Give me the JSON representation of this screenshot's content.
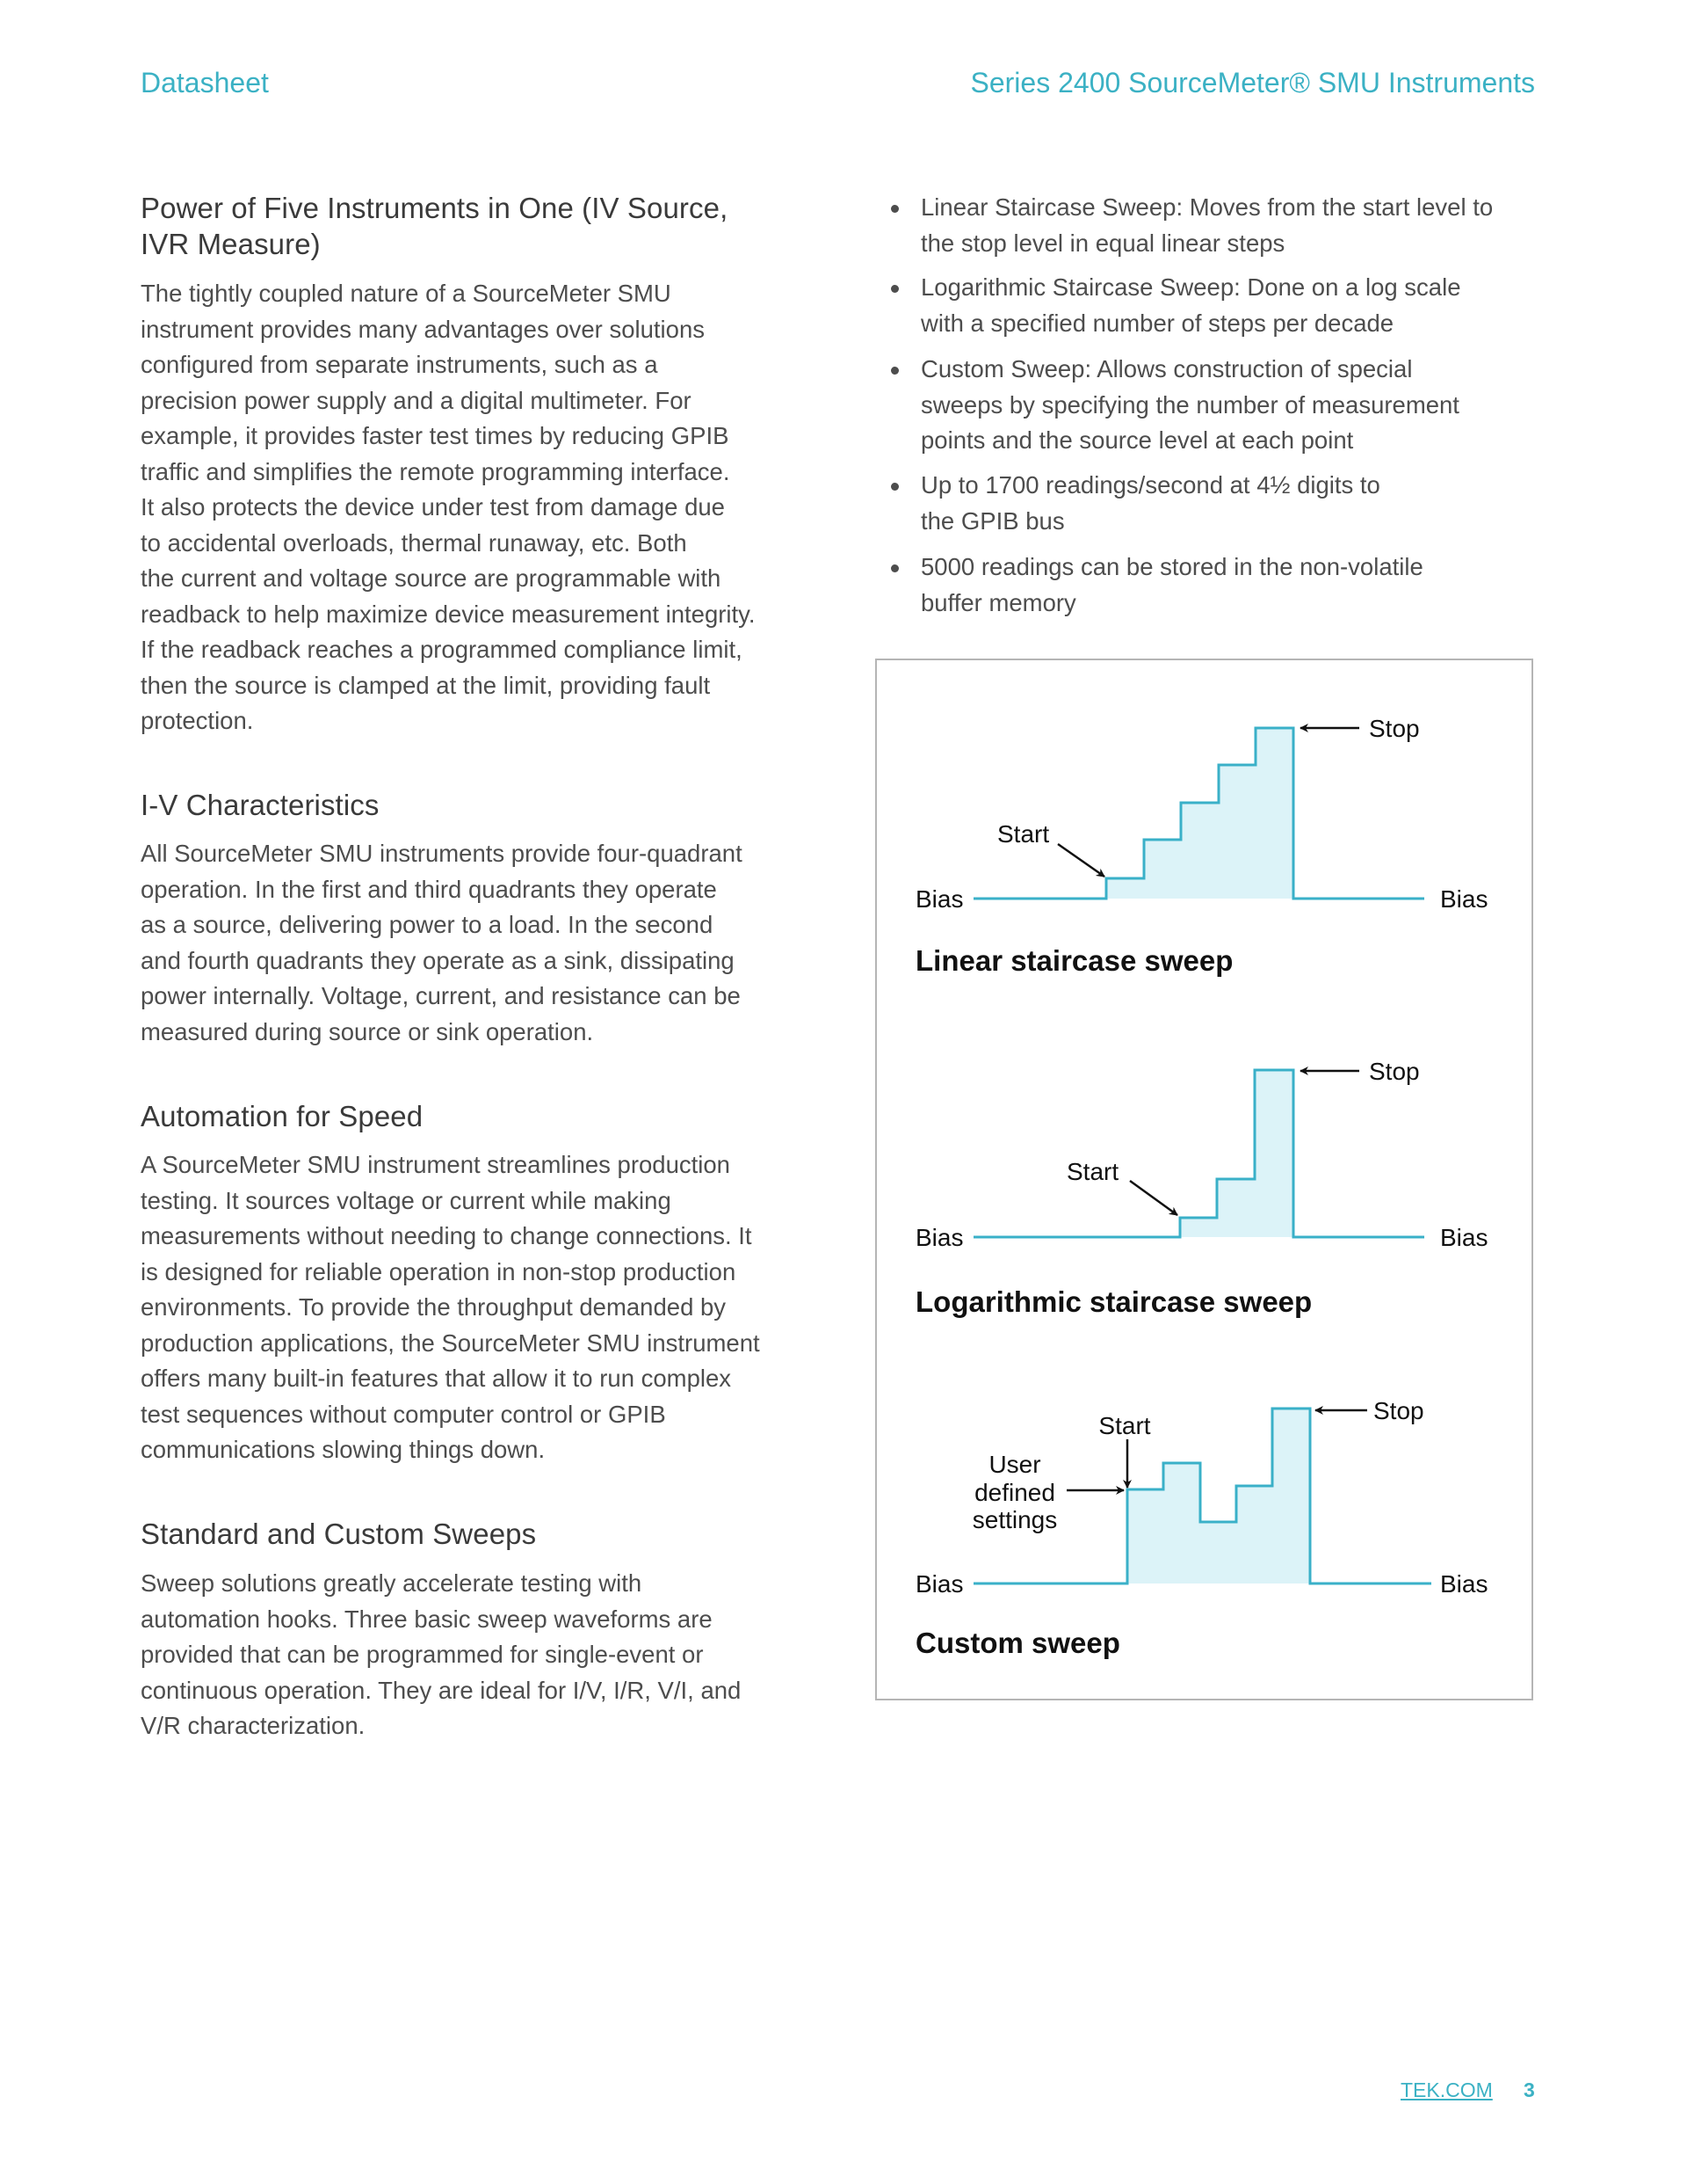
{
  "header": {
    "left": "Datasheet",
    "right": "Series 2400 SourceMeter® SMU Instruments"
  },
  "left_column": [
    {
      "heading": [
        "Power of Five Instruments in One (IV Source,",
        "IVR Measure)"
      ],
      "body": [
        "The tightly coupled nature of a SourceMeter SMU",
        "instrument provides many advantages over solutions",
        "configured from separate instruments, such as a",
        "precision power supply and a digital multimeter. For",
        "example, it provides faster test times by reducing GPIB",
        "traffic and simplifies the remote programming interface.",
        "It also protects the device under test from damage due",
        "to accidental overloads, thermal runaway, etc. Both",
        "the current and voltage source are programmable with",
        "readback to help maximize device measurement integrity.",
        "If the readback reaches a programmed compliance limit,",
        "then the source is clamped at the limit, providing fault",
        "protection."
      ]
    },
    {
      "heading": [
        "I-V Characteristics"
      ],
      "body": [
        "All SourceMeter SMU instruments provide four-quadrant",
        "operation. In the first and third quadrants they operate",
        "as a source, delivering power to a load. In the second",
        "and fourth quadrants they operate as a sink, dissipating",
        "power internally. Voltage, current, and resistance can be",
        "measured during source or sink operation."
      ]
    },
    {
      "heading": [
        "Automation for Speed"
      ],
      "body": [
        "A SourceMeter SMU instrument streamlines production",
        "testing. It sources voltage or current while making",
        "measurements without needing to change connections. It",
        "is designed for reliable operation in non-stop production",
        "environments. To provide the throughput demanded by",
        "production applications, the SourceMeter SMU instrument",
        "offers many built-in features that allow it to run complex",
        "test sequences without computer control or GPIB",
        "communications slowing things down."
      ]
    },
    {
      "heading": [
        "Standard and Custom Sweeps"
      ],
      "body": [
        "Sweep solutions greatly accelerate testing with",
        "automation hooks. Three basic sweep waveforms are",
        "provided that can be programmed for single-event or",
        "continuous operation. They are ideal for I/V, I/R, V/I, and",
        "V/R characterization."
      ]
    }
  ],
  "bullets": [
    [
      "Linear Staircase Sweep: Moves from the start level to",
      "the stop level in equal linear steps"
    ],
    [
      "Logarithmic Staircase Sweep: Done on a log scale",
      "with a specified number of steps per decade"
    ],
    [
      "Custom Sweep: Allows construction of special",
      "sweeps by specifying the number of measurement",
      "points and the source level at each point"
    ],
    [
      "Up to 1700 readings/second at 4½ digits to",
      "the GPIB bus"
    ],
    [
      "5000 readings can be stored in the non-volatile",
      "buffer memory"
    ]
  ],
  "diagram": {
    "colors": {
      "line": "#3ab0c8",
      "fill": "#dcf3f8"
    },
    "linear": {
      "title": "Linear staircase sweep",
      "bias_left": "Bias",
      "bias_right": "Bias",
      "start": "Start",
      "stop": "Stop"
    },
    "log": {
      "title": "Logarithmic staircase sweep",
      "bias_left": "Bias",
      "bias_right": "Bias",
      "start": "Start",
      "stop": "Stop"
    },
    "custom": {
      "title": "Custom sweep",
      "bias_left": "Bias",
      "bias_right": "Bias",
      "start": "Start",
      "stop": "Stop",
      "user_defined": [
        "User",
        "defined",
        "settings"
      ]
    }
  },
  "footer": {
    "link": "TEK.COM",
    "page": "3"
  }
}
